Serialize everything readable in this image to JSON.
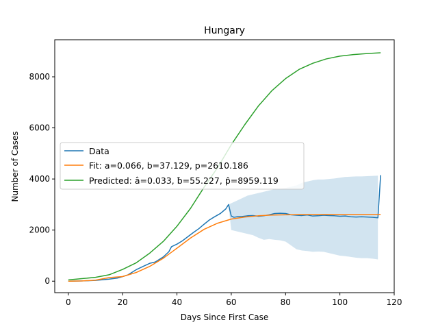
{
  "chart_data": {
    "type": "line",
    "title": "Hungary",
    "xlabel": "Days Since First Case",
    "ylabel": "Number of Cases",
    "xlim": [
      -5,
      120
    ],
    "ylim": [
      -450,
      9450
    ],
    "x_ticks": [
      0,
      20,
      40,
      60,
      80,
      100,
      120
    ],
    "y_ticks": [
      0,
      2000,
      4000,
      6000,
      8000
    ],
    "grid": false,
    "legend_position": "center-left",
    "series": [
      {
        "name": "Data",
        "color": "#1f77b4",
        "x": [
          0,
          5,
          10,
          15,
          18,
          20,
          22,
          25,
          28,
          30,
          32,
          35,
          37,
          38,
          40,
          42,
          44,
          46,
          48,
          50,
          52,
          54,
          56,
          58,
          59,
          60,
          61,
          62,
          64,
          66,
          68,
          70,
          72,
          74,
          76,
          78,
          80,
          82,
          84,
          86,
          88,
          90,
          92,
          94,
          96,
          98,
          100,
          102,
          104,
          106,
          108,
          110,
          112,
          114,
          115
        ],
        "y": [
          0,
          10,
          30,
          80,
          120,
          180,
          250,
          450,
          600,
          700,
          750,
          950,
          1150,
          1350,
          1450,
          1580,
          1740,
          1900,
          2050,
          2230,
          2400,
          2530,
          2650,
          2830,
          3000,
          2550,
          2500,
          2520,
          2530,
          2560,
          2570,
          2540,
          2560,
          2600,
          2650,
          2660,
          2650,
          2600,
          2580,
          2570,
          2590,
          2550,
          2560,
          2580,
          2570,
          2560,
          2540,
          2550,
          2520,
          2510,
          2520,
          2510,
          2500,
          2480,
          4150
        ]
      },
      {
        "name": "Fit: a=0.066, b=37.129, p=2610.186",
        "color": "#ff7f0e",
        "x": [
          0,
          5,
          10,
          15,
          20,
          25,
          30,
          35,
          40,
          45,
          50,
          55,
          60,
          65,
          70,
          75,
          80,
          85,
          90,
          95,
          100,
          105,
          110,
          115
        ],
        "y": [
          0,
          9,
          40,
          140,
          180,
          340,
          580,
          900,
          1290,
          1690,
          2030,
          2270,
          2430,
          2510,
          2560,
          2590,
          2600,
          2605,
          2608,
          2609,
          2610,
          2610,
          2610,
          2610
        ]
      },
      {
        "name": "Predicted: â=0.033, ƀ=55.227, p̂=8959.119",
        "color": "#2ca02c",
        "x": [
          0,
          5,
          10,
          15,
          20,
          25,
          30,
          35,
          40,
          45,
          50,
          55,
          60,
          65,
          70,
          75,
          80,
          85,
          90,
          95,
          100,
          105,
          110,
          115
        ],
        "y": [
          50,
          100,
          150,
          250,
          460,
          720,
          1100,
          1560,
          2150,
          2850,
          3680,
          4450,
          5340,
          6130,
          6860,
          7460,
          7930,
          8290,
          8530,
          8700,
          8810,
          8870,
          8910,
          8940
        ]
      }
    ],
    "confidence_band": {
      "color": "#1f77b4",
      "opacity": 0.2,
      "x": [
        59,
        60,
        62,
        64,
        66,
        68,
        70,
        72,
        74,
        76,
        78,
        80,
        82,
        84,
        86,
        88,
        90,
        92,
        94,
        96,
        98,
        100,
        102,
        104,
        106,
        108,
        110,
        112,
        114
      ],
      "lower": [
        2950,
        2000,
        1950,
        1900,
        1850,
        1800,
        1700,
        1620,
        1650,
        1620,
        1600,
        1550,
        1400,
        1250,
        1200,
        1180,
        1150,
        1160,
        1150,
        1100,
        1050,
        1000,
        980,
        950,
        920,
        900,
        900,
        880,
        850
      ],
      "upper": [
        3000,
        3050,
        3150,
        3250,
        3350,
        3400,
        3450,
        3500,
        3550,
        3600,
        3620,
        3650,
        3700,
        3750,
        3850,
        3900,
        3950,
        3980,
        3980,
        4000,
        4020,
        4050,
        4080,
        4090,
        4100,
        4100,
        4110,
        4120,
        4130
      ]
    }
  }
}
